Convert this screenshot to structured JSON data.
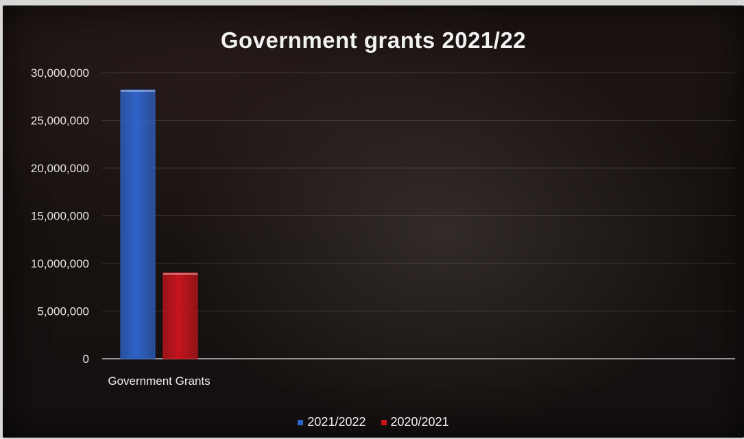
{
  "chart_data": {
    "type": "bar",
    "title": "Government grants 2021/22",
    "categories": [
      "Government Grants"
    ],
    "series": [
      {
        "name": "2021/2022",
        "values": [
          28200000
        ],
        "color": "#2f63c8"
      },
      {
        "name": "2020/2021",
        "values": [
          9000000
        ],
        "color": "#c4141c"
      }
    ],
    "ylim": [
      0,
      30000000
    ],
    "yticks": [
      "0",
      "5,000,000",
      "10,000,000",
      "15,000,000",
      "20,000,000",
      "25,000,000",
      "30,000,000"
    ],
    "ytick_values": [
      0,
      5000000,
      10000000,
      15000000,
      20000000,
      25000000,
      30000000
    ],
    "grid": true,
    "legend_position": "bottom"
  }
}
